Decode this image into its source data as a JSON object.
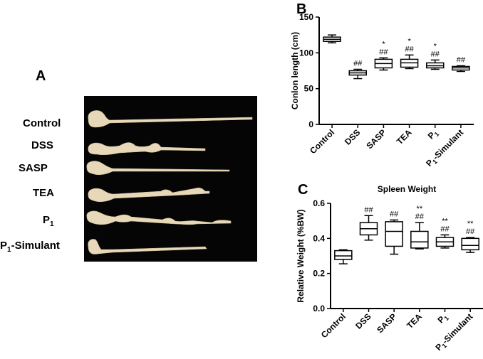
{
  "panels": {
    "a": "A",
    "b": "B",
    "c": "C"
  },
  "photo_groups": [
    {
      "main": "Control",
      "sub": ""
    },
    {
      "main": "DSS",
      "sub": ""
    },
    {
      "main": "SASP",
      "sub": ""
    },
    {
      "main": "TEA",
      "sub": ""
    },
    {
      "main": "P",
      "sub": "1"
    },
    {
      "main": "P",
      "sub": "1",
      "suffix": "-Simulant"
    }
  ],
  "colors": {
    "background": "#ffffff",
    "photo_background": "#050505",
    "tissue": "#e6d8b8",
    "ink": "#000000"
  },
  "chart_data": [
    {
      "type": "boxplot",
      "panel": "B",
      "title": "",
      "ylabel": "Conlon length (cm)",
      "xlabel": "",
      "ylim": [
        0,
        150
      ],
      "yticks": [
        0,
        50,
        100,
        150
      ],
      "categories": [
        {
          "main": "Control",
          "sub": ""
        },
        {
          "main": "DSS",
          "sub": ""
        },
        {
          "main": "SASP",
          "sub": ""
        },
        {
          "main": "TEA",
          "sub": ""
        },
        {
          "main": "P",
          "sub": "1"
        },
        {
          "main": "P",
          "sub": "1",
          "suffix": "-Simulant"
        }
      ],
      "boxes": [
        {
          "min": 114,
          "q1": 116,
          "median": 119,
          "q3": 122,
          "max": 125
        },
        {
          "min": 64,
          "q1": 69,
          "median": 72,
          "q3": 75,
          "max": 77
        },
        {
          "min": 76,
          "q1": 79,
          "median": 85,
          "q3": 91,
          "max": 93
        },
        {
          "min": 78,
          "q1": 80,
          "median": 86,
          "q3": 91,
          "max": 97
        },
        {
          "min": 77,
          "q1": 79,
          "median": 82,
          "q3": 86,
          "max": 90
        },
        {
          "min": 74,
          "q1": 76,
          "median": 79,
          "q3": 81,
          "max": 82
        }
      ],
      "annotations": [
        [],
        [
          "##"
        ],
        [
          "*",
          "##"
        ],
        [
          "*",
          "##"
        ],
        [
          "*",
          "##"
        ],
        [
          "##"
        ]
      ]
    },
    {
      "type": "boxplot",
      "panel": "C",
      "title": "Spleen Weight",
      "ylabel": "Relative Weight (%BW)",
      "xlabel": "",
      "ylim": [
        0,
        0.6
      ],
      "yticks": [
        0.0,
        0.2,
        0.4,
        0.6
      ],
      "ytick_labels": [
        "0.0",
        "0.2",
        "0.4",
        "0.6"
      ],
      "categories": [
        {
          "main": "Control",
          "sub": ""
        },
        {
          "main": "DSS",
          "sub": ""
        },
        {
          "main": "SASP",
          "sub": ""
        },
        {
          "main": "TEA",
          "sub": ""
        },
        {
          "main": "P",
          "sub": "1"
        },
        {
          "main": "P",
          "sub": "1",
          "suffix": "-Simulant"
        }
      ],
      "boxes": [
        {
          "min": 0.255,
          "q1": 0.28,
          "median": 0.3,
          "q3": 0.33,
          "max": 0.335
        },
        {
          "min": 0.39,
          "q1": 0.42,
          "median": 0.455,
          "q3": 0.49,
          "max": 0.53
        },
        {
          "min": 0.31,
          "q1": 0.355,
          "median": 0.44,
          "q3": 0.495,
          "max": 0.505
        },
        {
          "min": 0.34,
          "q1": 0.345,
          "median": 0.38,
          "q3": 0.44,
          "max": 0.49
        },
        {
          "min": 0.345,
          "q1": 0.355,
          "median": 0.38,
          "q3": 0.405,
          "max": 0.42
        },
        {
          "min": 0.32,
          "q1": 0.335,
          "median": 0.36,
          "q3": 0.4,
          "max": 0.405
        }
      ],
      "annotations": [
        [],
        [
          "##"
        ],
        [
          "##"
        ],
        [
          "**",
          "##"
        ],
        [
          "**",
          "##"
        ],
        [
          "**",
          "##"
        ]
      ]
    }
  ]
}
